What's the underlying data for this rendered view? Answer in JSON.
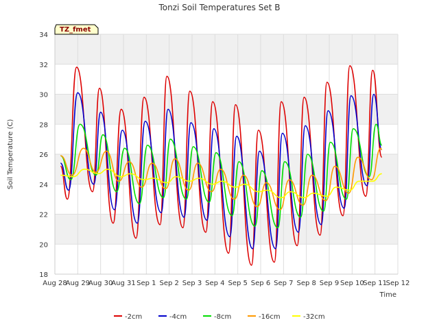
{
  "chart_data": {
    "type": "line",
    "title": "Tonzi Soil Temperatures Set B",
    "xlabel": "Time",
    "ylabel": "Soil Temperature (C)",
    "badge": "TZ_fmet",
    "ylim": [
      18,
      34
    ],
    "yticks": [
      18,
      20,
      22,
      24,
      26,
      28,
      30,
      32,
      34
    ],
    "xlim": [
      0,
      15
    ],
    "xticks": [
      {
        "day": 0,
        "label": "Aug 28"
      },
      {
        "day": 1,
        "label": "Aug 29"
      },
      {
        "day": 2,
        "label": "Aug 30"
      },
      {
        "day": 3,
        "label": "Aug 31"
      },
      {
        "day": 4,
        "label": "Sep 1"
      },
      {
        "day": 5,
        "label": "Sep 2"
      },
      {
        "day": 6,
        "label": "Sep 3"
      },
      {
        "day": 7,
        "label": "Sep 4"
      },
      {
        "day": 8,
        "label": "Sep 5"
      },
      {
        "day": 9,
        "label": "Sep 6"
      },
      {
        "day": 10,
        "label": "Sep 7"
      },
      {
        "day": 11,
        "label": "Sep 8"
      },
      {
        "day": 12,
        "label": "Sep 9"
      },
      {
        "day": 13,
        "label": "Sep 10"
      },
      {
        "day": 14,
        "label": "Sep 11"
      },
      {
        "day": 15,
        "label": "Sep 12"
      }
    ],
    "grid": true,
    "legend_position": "bottom",
    "series": [
      {
        "name": "-2cm",
        "color": "#dd0000",
        "points": [
          [
            0.25,
            25.2
          ],
          [
            0.55,
            23.0
          ],
          [
            0.95,
            31.8
          ],
          [
            1.65,
            23.5
          ],
          [
            1.95,
            30.4
          ],
          [
            2.55,
            21.4
          ],
          [
            2.9,
            29.0
          ],
          [
            3.55,
            20.4
          ],
          [
            3.9,
            29.8
          ],
          [
            4.6,
            21.3
          ],
          [
            4.9,
            31.2
          ],
          [
            5.6,
            21.1
          ],
          [
            5.9,
            30.2
          ],
          [
            6.6,
            20.8
          ],
          [
            6.9,
            29.5
          ],
          [
            7.6,
            19.4
          ],
          [
            7.9,
            29.3
          ],
          [
            8.6,
            18.6
          ],
          [
            8.9,
            27.6
          ],
          [
            9.6,
            18.8
          ],
          [
            9.9,
            29.5
          ],
          [
            10.6,
            19.9
          ],
          [
            10.9,
            29.8
          ],
          [
            11.6,
            20.6
          ],
          [
            11.9,
            30.8
          ],
          [
            12.6,
            21.9
          ],
          [
            12.9,
            31.9
          ],
          [
            13.6,
            23.2
          ],
          [
            13.9,
            31.6
          ],
          [
            14.3,
            25.8
          ]
        ]
      },
      {
        "name": "-4cm",
        "color": "#0000cc",
        "points": [
          [
            0.25,
            25.4
          ],
          [
            0.6,
            23.6
          ],
          [
            1.0,
            30.1
          ],
          [
            1.7,
            24.0
          ],
          [
            2.0,
            28.8
          ],
          [
            2.6,
            22.3
          ],
          [
            2.95,
            27.6
          ],
          [
            3.6,
            21.4
          ],
          [
            3.95,
            28.2
          ],
          [
            4.65,
            22.1
          ],
          [
            4.95,
            29.0
          ],
          [
            5.65,
            21.8
          ],
          [
            5.95,
            28.1
          ],
          [
            6.65,
            21.6
          ],
          [
            6.95,
            27.7
          ],
          [
            7.65,
            20.5
          ],
          [
            7.95,
            27.2
          ],
          [
            8.65,
            19.7
          ],
          [
            8.95,
            26.2
          ],
          [
            9.65,
            19.7
          ],
          [
            9.95,
            27.4
          ],
          [
            10.65,
            20.8
          ],
          [
            10.95,
            27.9
          ],
          [
            11.65,
            21.3
          ],
          [
            11.95,
            28.9
          ],
          [
            12.65,
            22.4
          ],
          [
            12.95,
            29.9
          ],
          [
            13.65,
            23.9
          ],
          [
            13.95,
            30.0
          ],
          [
            14.3,
            26.3
          ]
        ]
      },
      {
        "name": "-8cm",
        "color": "#00dd00",
        "points": [
          [
            0.25,
            25.9
          ],
          [
            0.7,
            24.3
          ],
          [
            1.1,
            28.0
          ],
          [
            1.8,
            24.6
          ],
          [
            2.1,
            27.3
          ],
          [
            2.7,
            23.5
          ],
          [
            3.05,
            26.4
          ],
          [
            3.7,
            22.7
          ],
          [
            4.05,
            26.6
          ],
          [
            4.75,
            23.1
          ],
          [
            5.05,
            27.0
          ],
          [
            5.75,
            23.0
          ],
          [
            6.05,
            26.5
          ],
          [
            6.75,
            22.8
          ],
          [
            7.05,
            26.1
          ],
          [
            7.75,
            21.9
          ],
          [
            8.05,
            25.5
          ],
          [
            8.75,
            21.2
          ],
          [
            9.05,
            24.9
          ],
          [
            9.75,
            21.1
          ],
          [
            10.05,
            25.5
          ],
          [
            10.75,
            21.8
          ],
          [
            11.05,
            26.0
          ],
          [
            11.75,
            22.2
          ],
          [
            12.05,
            26.8
          ],
          [
            12.75,
            23.0
          ],
          [
            13.05,
            27.7
          ],
          [
            13.75,
            24.5
          ],
          [
            14.05,
            28.0
          ],
          [
            14.3,
            26.6
          ]
        ]
      },
      {
        "name": "-16cm",
        "color": "#ff9900",
        "points": [
          [
            0.25,
            25.9
          ],
          [
            0.75,
            24.6
          ],
          [
            1.25,
            26.4
          ],
          [
            1.8,
            24.8
          ],
          [
            2.25,
            26.2
          ],
          [
            2.8,
            24.2
          ],
          [
            3.25,
            25.5
          ],
          [
            3.8,
            23.8
          ],
          [
            4.25,
            25.4
          ],
          [
            4.85,
            23.7
          ],
          [
            5.25,
            25.7
          ],
          [
            5.85,
            23.6
          ],
          [
            6.25,
            25.4
          ],
          [
            6.85,
            23.5
          ],
          [
            7.25,
            25.0
          ],
          [
            7.85,
            23.0
          ],
          [
            8.25,
            24.6
          ],
          [
            8.85,
            22.5
          ],
          [
            9.25,
            24.1
          ],
          [
            9.85,
            22.3
          ],
          [
            10.25,
            24.3
          ],
          [
            10.85,
            22.6
          ],
          [
            11.25,
            24.6
          ],
          [
            11.85,
            22.9
          ],
          [
            12.25,
            25.2
          ],
          [
            12.85,
            23.4
          ],
          [
            13.25,
            25.8
          ],
          [
            13.85,
            24.3
          ],
          [
            14.25,
            26.4
          ],
          [
            14.3,
            26.3
          ]
        ]
      },
      {
        "name": "-32cm",
        "color": "#ffff00",
        "points": [
          [
            0.25,
            24.6
          ],
          [
            0.8,
            24.5
          ],
          [
            1.3,
            25.0
          ],
          [
            1.9,
            24.7
          ],
          [
            2.3,
            25.0
          ],
          [
            2.9,
            24.5
          ],
          [
            3.3,
            24.7
          ],
          [
            3.9,
            24.3
          ],
          [
            4.3,
            24.4
          ],
          [
            4.9,
            24.1
          ],
          [
            5.3,
            24.5
          ],
          [
            5.9,
            24.2
          ],
          [
            6.3,
            24.4
          ],
          [
            6.9,
            24.0
          ],
          [
            7.3,
            24.2
          ],
          [
            7.9,
            23.8
          ],
          [
            8.3,
            24.0
          ],
          [
            8.9,
            23.5
          ],
          [
            9.3,
            23.6
          ],
          [
            9.9,
            23.1
          ],
          [
            10.3,
            23.5
          ],
          [
            10.9,
            23.1
          ],
          [
            11.3,
            23.4
          ],
          [
            11.9,
            23.2
          ],
          [
            12.3,
            23.8
          ],
          [
            12.9,
            23.6
          ],
          [
            13.3,
            24.2
          ],
          [
            13.9,
            24.2
          ],
          [
            14.3,
            24.7
          ]
        ]
      }
    ]
  }
}
